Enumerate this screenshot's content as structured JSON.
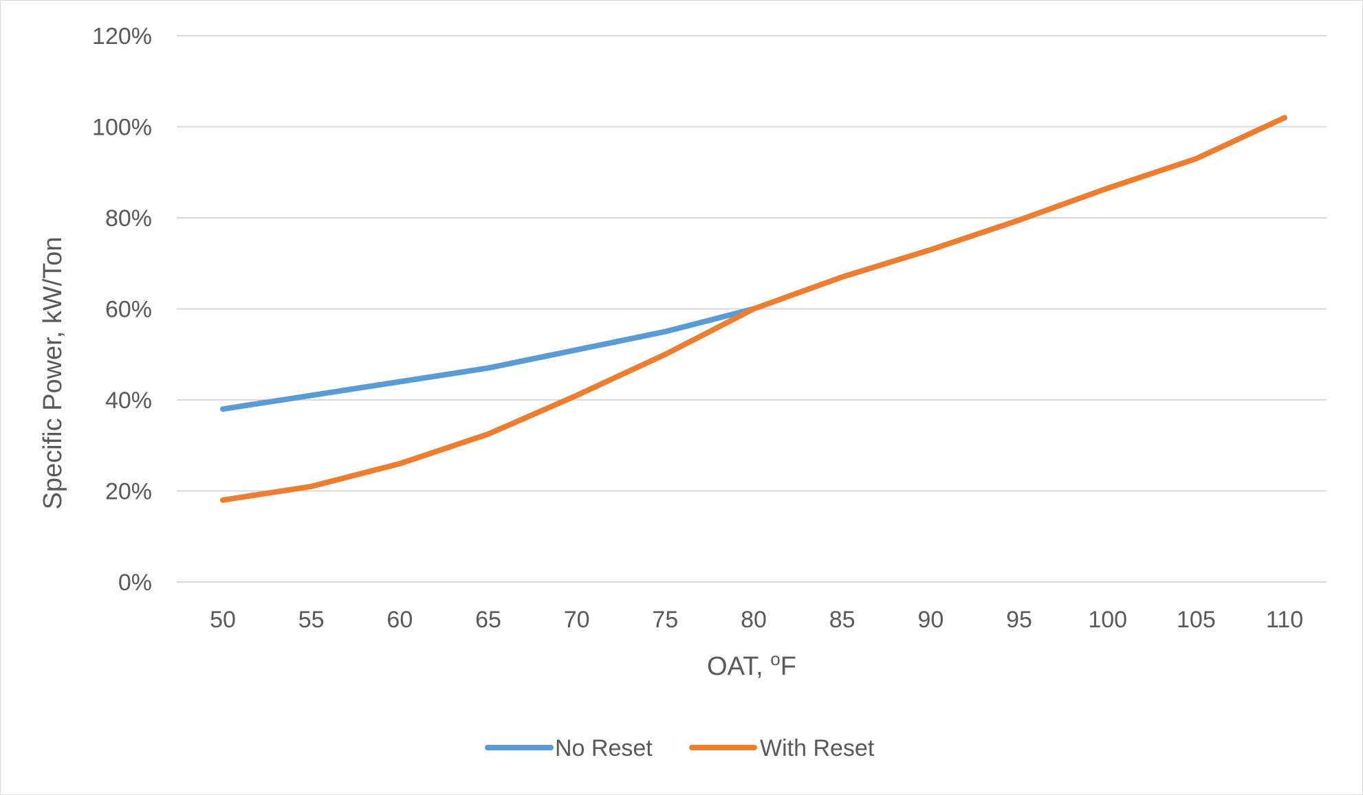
{
  "chart_data": {
    "type": "line",
    "title": "",
    "xlabel": "OAT, ",
    "xlabel_superscript": "o",
    "xlabel_suffix": "F",
    "ylabel": "Specific Power, kW/Ton",
    "categories": [
      50,
      55,
      60,
      65,
      70,
      75,
      80,
      85,
      90,
      95,
      100,
      105,
      110
    ],
    "y_tick_labels": [
      "0%",
      "20%",
      "40%",
      "60%",
      "80%",
      "100%",
      "120%"
    ],
    "y_ticks": [
      0,
      20,
      40,
      60,
      80,
      100,
      120
    ],
    "ylim": [
      0,
      120
    ],
    "y_unit": "%",
    "grid": "horizontal",
    "legend_position": "bottom",
    "series": [
      {
        "name": "No Reset",
        "color": "#5b9bd5",
        "values": [
          38,
          41,
          44,
          47,
          51,
          55,
          60,
          null,
          null,
          null,
          null,
          null,
          null
        ]
      },
      {
        "name": "With Reset",
        "color": "#ed7d31",
        "values": [
          18,
          21,
          26,
          32.5,
          41,
          50,
          60,
          67,
          73,
          79.5,
          86.5,
          93,
          102
        ]
      }
    ]
  },
  "colors": {
    "gridline": "#d9d9d9",
    "text": "#595959",
    "border": "#d9d9d9"
  }
}
